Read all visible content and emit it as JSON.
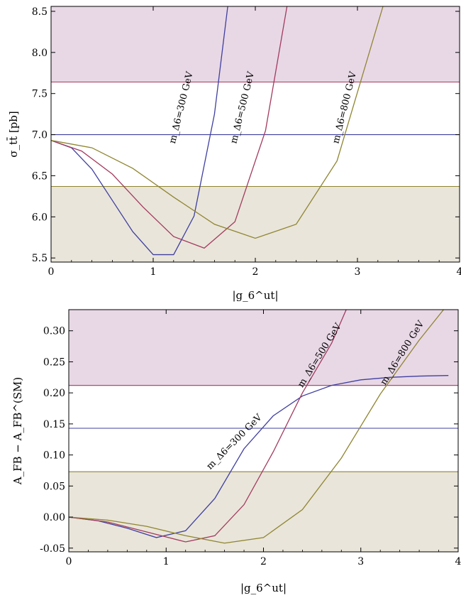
{
  "colors": {
    "band_upper": "#e8d8e6",
    "band_lower": "#e9e5da",
    "line_blue": "#3f3fa0",
    "line_red": "#a33a5e",
    "line_olive": "#8f8530"
  },
  "chart_data": [
    {
      "type": "line",
      "ylabel": "σ_tt̄ [pb]",
      "xlabel": "|g_6^ut|",
      "xlim": [
        0,
        4
      ],
      "ylim": [
        5.45,
        8.56
      ],
      "x_ticks": [
        "0",
        "1",
        "2",
        "3",
        "4"
      ],
      "y_ticks": [
        "5.5",
        "6.0",
        "6.5",
        "7.0",
        "7.5",
        "8.0",
        "8.5"
      ],
      "bands": [
        {
          "from": 7.64,
          "to": 8.56,
          "color": "band_upper"
        },
        {
          "from": 5.45,
          "to": 6.37,
          "color": "band_lower"
        }
      ],
      "hlines": [
        {
          "y": 7.64,
          "color": "line_red"
        },
        {
          "y": 7.0,
          "color": "line_blue"
        },
        {
          "y": 6.37,
          "color": "line_olive"
        }
      ],
      "series": [
        {
          "name": "m_Δ6=300 GeV",
          "color": "line_blue",
          "x": [
            0,
            0.2,
            0.4,
            0.6,
            0.8,
            1.0,
            1.2,
            1.4,
            1.6,
            1.73
          ],
          "y": [
            6.93,
            6.84,
            6.58,
            6.2,
            5.82,
            5.54,
            5.54,
            6.01,
            7.25,
            8.56
          ],
          "label_at": {
            "x": 1.3,
            "y": 7.32,
            "angle": -76
          }
        },
        {
          "name": "m_Δ6=500 GeV",
          "color": "line_red",
          "x": [
            0,
            0.3,
            0.6,
            0.9,
            1.2,
            1.5,
            1.8,
            2.1,
            2.31
          ],
          "y": [
            6.93,
            6.8,
            6.52,
            6.12,
            5.76,
            5.62,
            5.94,
            7.05,
            8.56
          ],
          "label_at": {
            "x": 1.9,
            "y": 7.32,
            "angle": -76
          }
        },
        {
          "name": "m_Δ6=800 GeV",
          "color": "line_olive",
          "x": [
            0,
            0.4,
            0.8,
            1.2,
            1.6,
            2.0,
            2.4,
            2.8,
            3.25
          ],
          "y": [
            6.93,
            6.84,
            6.59,
            6.24,
            5.91,
            5.74,
            5.91,
            6.68,
            8.56
          ],
          "label_at": {
            "x": 2.9,
            "y": 7.32,
            "angle": -76
          }
        }
      ]
    },
    {
      "type": "line",
      "ylabel": "A_FB − A_FB^(SM)",
      "xlabel": "|g_6^ut|",
      "xlim": [
        0,
        4
      ],
      "ylim": [
        -0.056,
        0.334
      ],
      "x_ticks": [
        "0",
        "1",
        "2",
        "3",
        "4"
      ],
      "y_ticks": [
        "-0.05",
        "0.00",
        "0.05",
        "0.10",
        "0.15",
        "0.20",
        "0.25",
        "0.30"
      ],
      "bands": [
        {
          "from": 0.212,
          "to": 0.334,
          "color": "band_upper"
        },
        {
          "from": -0.056,
          "to": 0.073,
          "color": "band_lower"
        }
      ],
      "hlines": [
        {
          "y": 0.212,
          "color": "line_red"
        },
        {
          "y": 0.143,
          "color": "line_blue"
        },
        {
          "y": 0.073,
          "color": "line_olive"
        }
      ],
      "series": [
        {
          "name": "m_Δ6=300 GeV",
          "color": "line_blue",
          "x": [
            0,
            0.3,
            0.6,
            0.9,
            1.2,
            1.5,
            1.8,
            2.1,
            2.4,
            2.7,
            3.0,
            3.3,
            3.6,
            3.9
          ],
          "y": [
            0.0,
            -0.006,
            -0.018,
            -0.033,
            -0.022,
            0.03,
            0.11,
            0.163,
            0.195,
            0.212,
            0.221,
            0.225,
            0.227,
            0.228
          ],
          "label_at": {
            "x": 1.72,
            "y": 0.118,
            "angle": -45
          }
        },
        {
          "name": "m_Δ6=500 GeV",
          "color": "line_red",
          "x": [
            0,
            0.4,
            0.8,
            1.2,
            1.5,
            1.8,
            2.1,
            2.4,
            2.7,
            2.85
          ],
          "y": [
            0.0,
            -0.008,
            -0.024,
            -0.04,
            -0.03,
            0.02,
            0.105,
            0.2,
            0.28,
            0.334
          ],
          "label_at": {
            "x": 2.6,
            "y": 0.258,
            "angle": -58
          }
        },
        {
          "name": "m_Δ6=800 GeV",
          "color": "line_olive",
          "x": [
            0,
            0.4,
            0.8,
            1.2,
            1.6,
            2.0,
            2.4,
            2.8,
            3.2,
            3.6,
            3.85
          ],
          "y": [
            0.0,
            -0.005,
            -0.015,
            -0.03,
            -0.042,
            -0.033,
            0.012,
            0.095,
            0.198,
            0.285,
            0.334
          ],
          "label_at": {
            "x": 3.45,
            "y": 0.262,
            "angle": -58
          }
        }
      ]
    }
  ]
}
